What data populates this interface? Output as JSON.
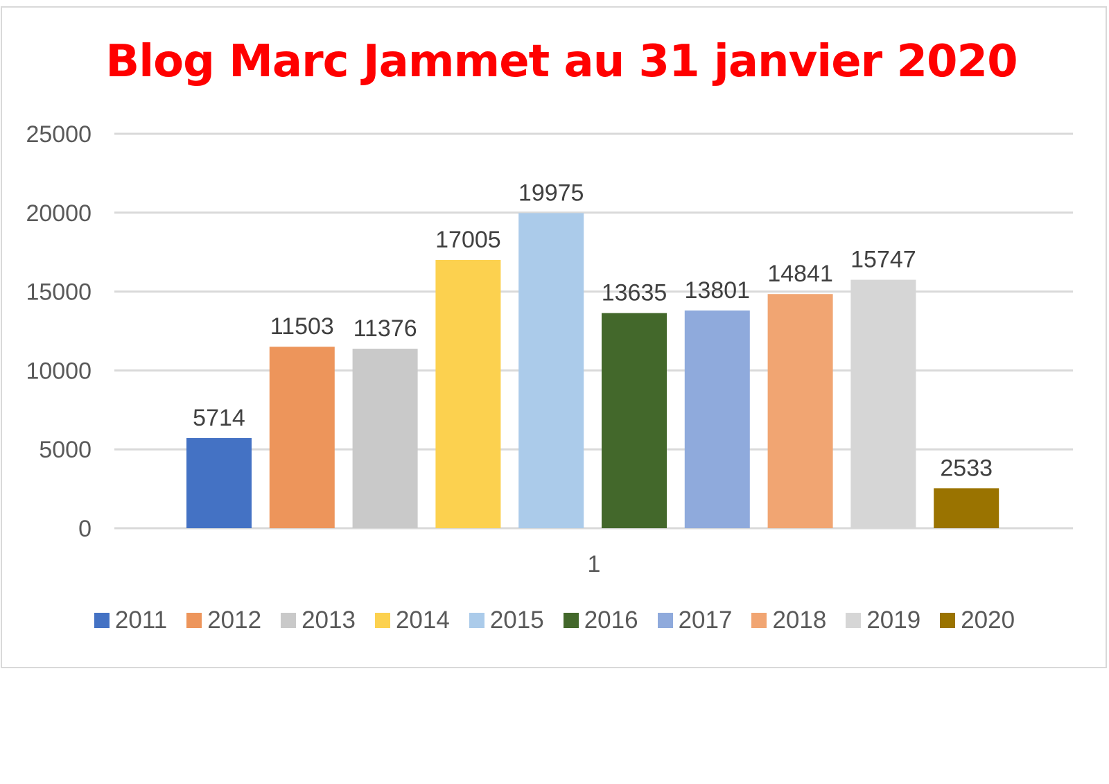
{
  "chart_data": {
    "type": "bar",
    "title": "Blog Marc Jammet au 31 janvier 2020",
    "categories": [
      "1"
    ],
    "ylim": [
      0,
      25000
    ],
    "yticks": [
      0,
      5000,
      10000,
      15000,
      20000,
      25000
    ],
    "grid": true,
    "legend_position": "bottom",
    "series": [
      {
        "name": "2011",
        "values": [
          5714
        ],
        "color": "#4472c4"
      },
      {
        "name": "2012",
        "values": [
          11503
        ],
        "color": "#ed955b"
      },
      {
        "name": "2013",
        "values": [
          11376
        ],
        "color": "#c9c9c9"
      },
      {
        "name": "2014",
        "values": [
          17005
        ],
        "color": "#fcd14f"
      },
      {
        "name": "2015",
        "values": [
          19975
        ],
        "color": "#abcbea"
      },
      {
        "name": "2016",
        "values": [
          13635
        ],
        "color": "#43682b"
      },
      {
        "name": "2017",
        "values": [
          13801
        ],
        "color": "#8faadc"
      },
      {
        "name": "2018",
        "values": [
          14841
        ],
        "color": "#f1a572"
      },
      {
        "name": "2019",
        "values": [
          15747
        ],
        "color": "#d6d6d6"
      },
      {
        "name": "2020",
        "values": [
          2533
        ],
        "color": "#9a7300"
      }
    ]
  }
}
